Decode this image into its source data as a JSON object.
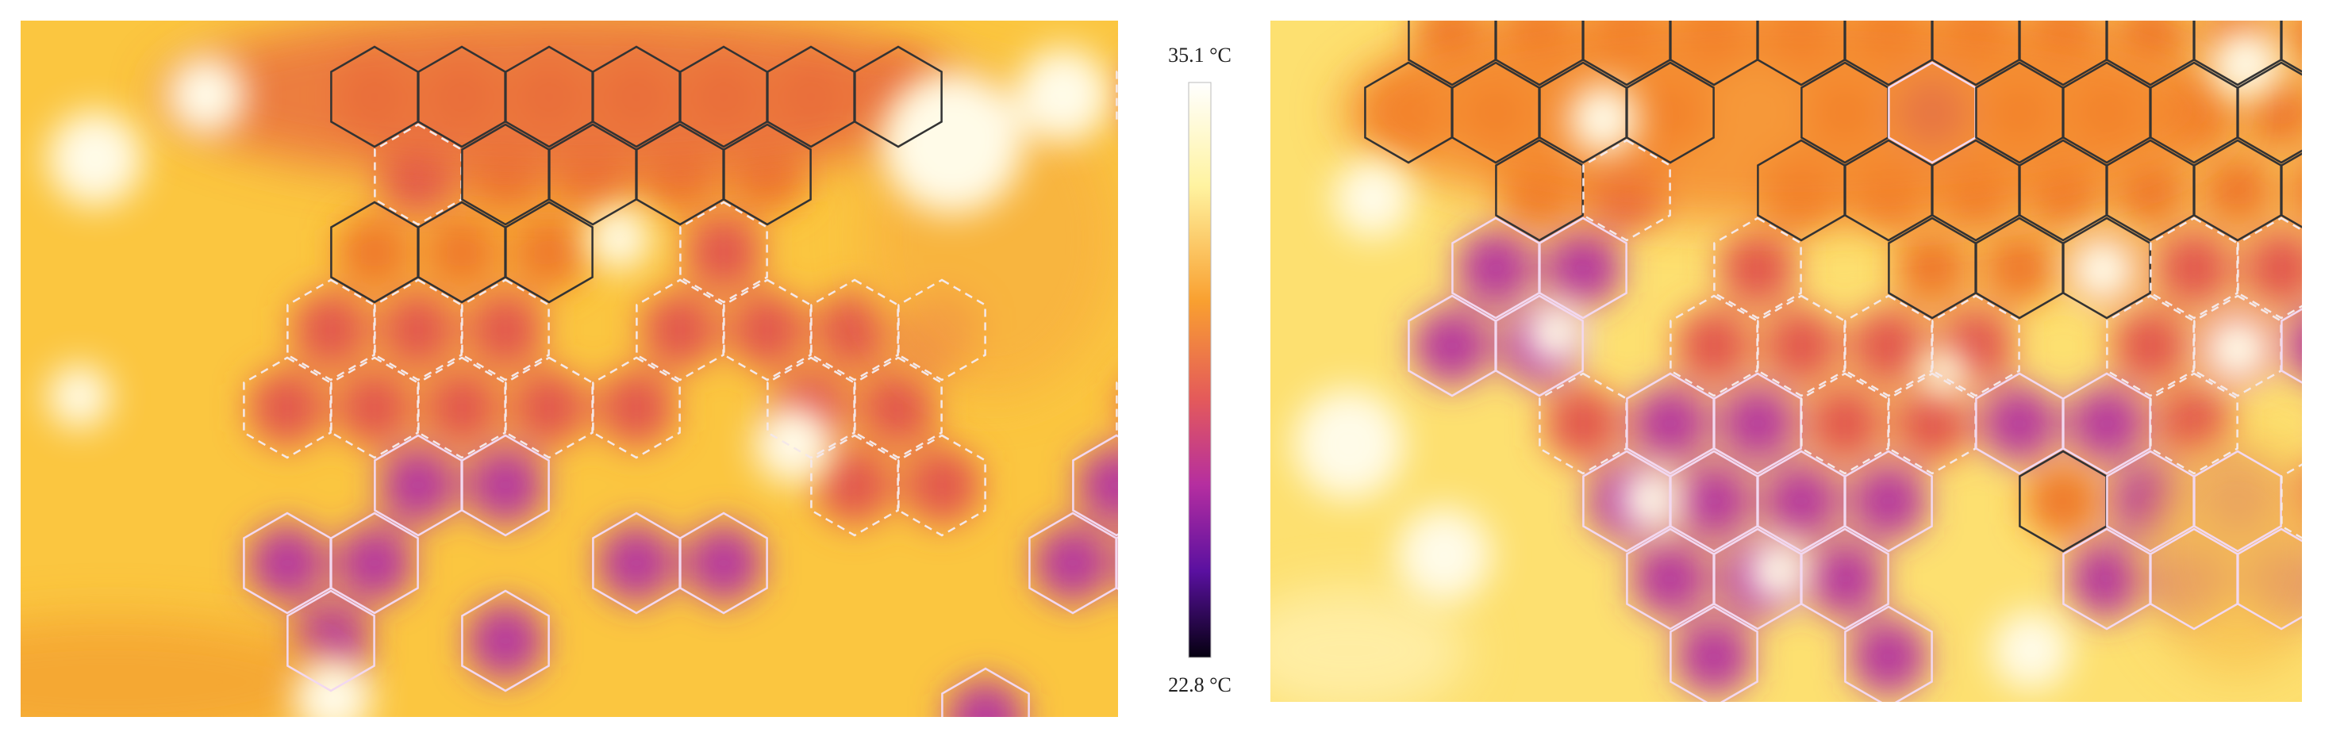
{
  "colorbar": {
    "max_label": "35.1 °C",
    "min_label": "22.8 °C"
  }
}
